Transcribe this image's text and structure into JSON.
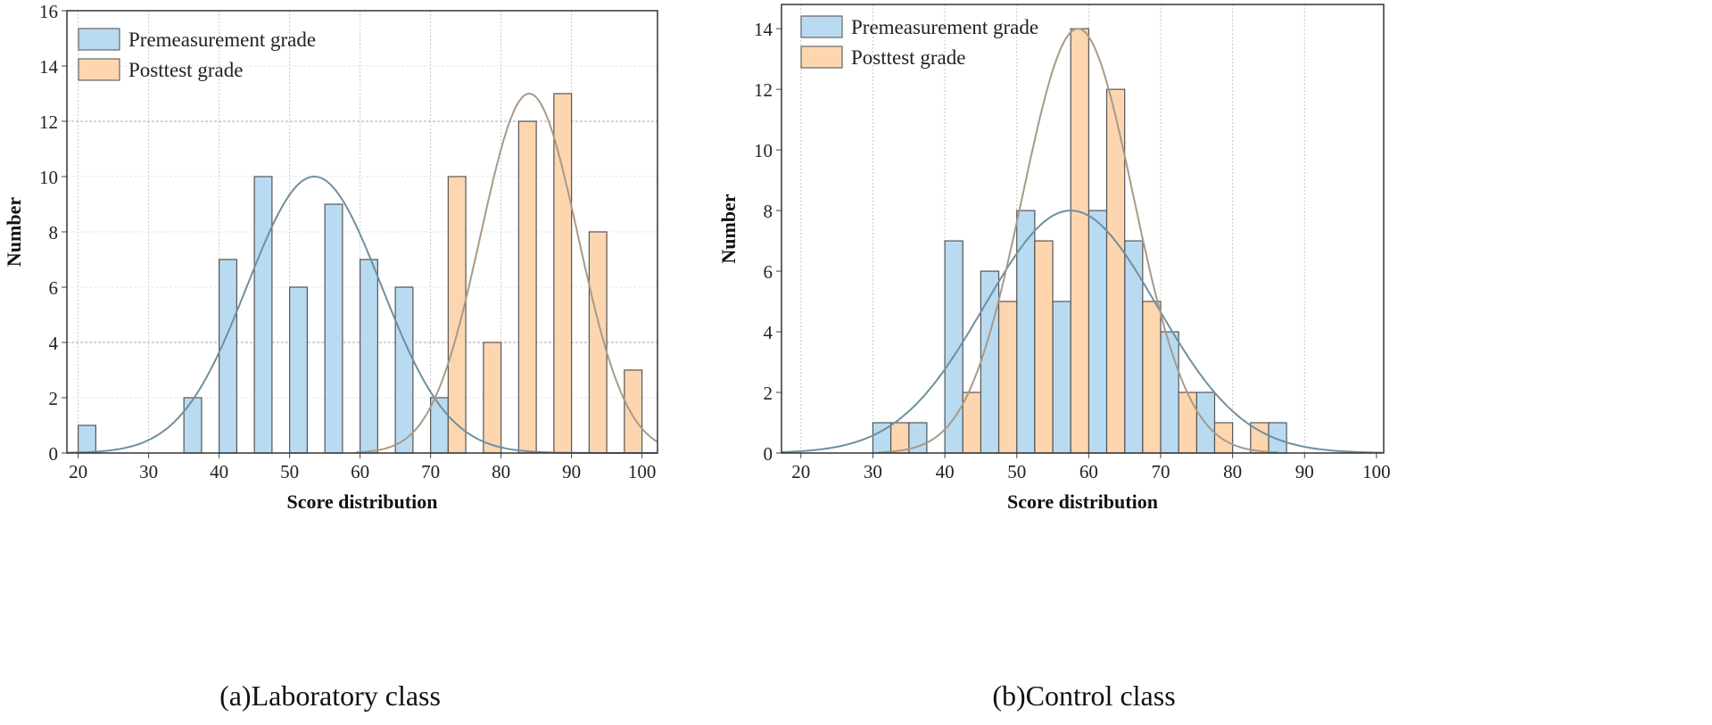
{
  "chart_data": [
    {
      "type": "bar",
      "caption": "(a)Laboratory class",
      "xlabel": "Score distribution",
      "ylabel": "Number",
      "xlim": [
        18.4,
        102.2
      ],
      "ylim": [
        0,
        16
      ],
      "xticks": [
        "20",
        "30",
        "40",
        "50",
        "60",
        "70",
        "80",
        "90",
        "100"
      ],
      "yticks": [
        "0",
        "2",
        "4",
        "6",
        "8",
        "10",
        "12",
        "14",
        "16"
      ],
      "bin_width": 5,
      "grid": true,
      "legend": "top-left",
      "series": [
        {
          "name": "Premeasurement grade",
          "color": "#b9dbf2",
          "curve_color": "#6f8fa0",
          "bins": [
            20,
            35,
            40,
            45,
            50,
            55,
            60,
            65,
            70
          ],
          "values": [
            1,
            2,
            7,
            10,
            6,
            9,
            7,
            6,
            2
          ],
          "fit": {
            "peak": 10,
            "mean": 53.5,
            "sd": 9.5
          }
        },
        {
          "name": "Posttest grade",
          "color": "#fdd6b0",
          "curve_color": "#a89a88",
          "bins": [
            70,
            75,
            80,
            85,
            90,
            95
          ],
          "values": [
            10,
            4,
            12,
            13,
            8,
            3
          ],
          "fit": {
            "peak": 13,
            "mean": 84,
            "sd": 6.9
          }
        }
      ]
    },
    {
      "type": "bar",
      "caption": "(b)Control class",
      "xlabel": "Score distribution",
      "ylabel": "Number",
      "xlim": [
        17.3,
        101
      ],
      "ylim": [
        0,
        14.8
      ],
      "xticks": [
        "20",
        "30",
        "40",
        "50",
        "60",
        "70",
        "80",
        "90",
        "100"
      ],
      "yticks": [
        "0",
        "2",
        "4",
        "6",
        "8",
        "10",
        "12",
        "14"
      ],
      "bin_width": 5,
      "grid": true,
      "legend": "top-left",
      "series": [
        {
          "name": "Premeasurement grade",
          "color": "#b9dbf2",
          "curve_color": "#6f8fa0",
          "bins": [
            30,
            35,
            40,
            45,
            50,
            55,
            60,
            65,
            70,
            75,
            85
          ],
          "values": [
            1,
            1,
            7,
            6,
            8,
            5,
            8,
            7,
            4,
            2,
            1
          ],
          "fit": {
            "peak": 8,
            "mean": 57.5,
            "sd": 12
          }
        },
        {
          "name": "Posttest grade",
          "color": "#fdd6b0",
          "curve_color": "#a89a88",
          "bins": [
            30,
            40,
            45,
            50,
            55,
            60,
            65,
            70,
            75,
            80
          ],
          "values": [
            1,
            2,
            5,
            7,
            14,
            12,
            5,
            2,
            1,
            1
          ],
          "fit": {
            "peak": 14,
            "mean": 58.5,
            "sd": 7.7
          }
        }
      ]
    }
  ]
}
